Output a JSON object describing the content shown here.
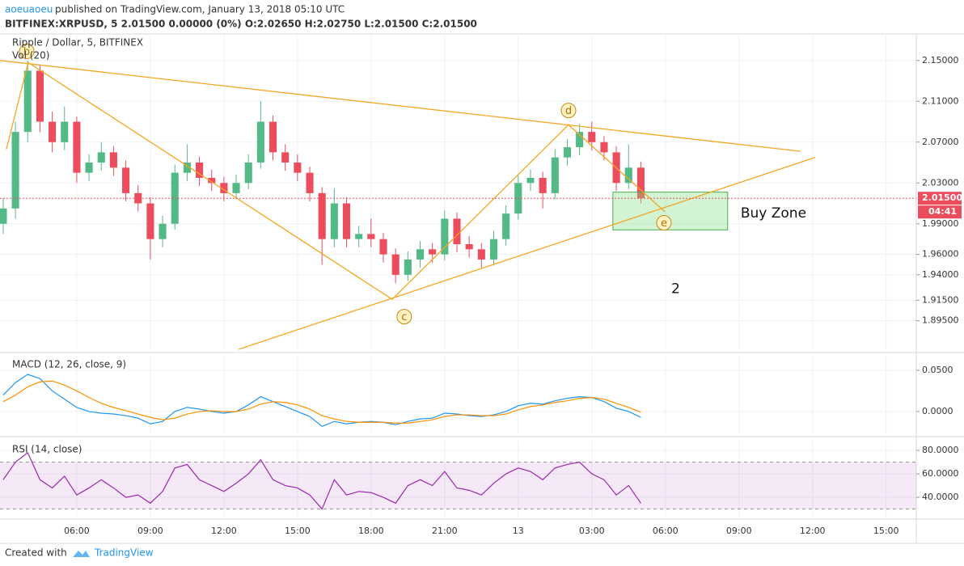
{
  "header": {
    "author": "aoeuaoeu",
    "published": "published on TradingView.com, January 13, 2018 05:10 UTC",
    "symbol_line": "BITFINEX:XRPUSD, 5  2.01500 0.00000 (0%) O:2.02650 H:2.02750 L:2.01500 C:2.01500"
  },
  "chart_data": [
    {
      "type": "candlestick",
      "title": "Ripple / Dollar, 5, BITFINEX",
      "subtitle": "Vol (20)",
      "up_color": "#53b987",
      "down_color": "#eb4d5c",
      "xlim": [
        2.87,
        40.23
      ],
      "xticks": [
        {
          "value": 6,
          "label": "06:00"
        },
        {
          "value": 9,
          "label": "09:00"
        },
        {
          "value": 12,
          "label": "12:00"
        },
        {
          "value": 15,
          "label": "15:00"
        },
        {
          "value": 18,
          "label": "18:00"
        },
        {
          "value": 21,
          "label": "21:00"
        },
        {
          "value": 24,
          "label": "13"
        },
        {
          "value": 27,
          "label": "03:00"
        },
        {
          "value": 30,
          "label": "06:00"
        },
        {
          "value": 33,
          "label": "09:00"
        },
        {
          "value": 36,
          "label": "12:00"
        },
        {
          "value": 39,
          "label": "15:00"
        }
      ],
      "ylim": [
        1.867,
        2.176
      ],
      "yticks": [
        {
          "value": 2.15,
          "label": "2.15000"
        },
        {
          "value": 2.11,
          "label": "2.11000"
        },
        {
          "value": 2.07,
          "label": "2.07000"
        },
        {
          "value": 2.03,
          "label": "2.03000"
        },
        {
          "value": 1.99,
          "label": "1.99000"
        },
        {
          "value": 1.96,
          "label": "1.96000"
        },
        {
          "value": 1.94,
          "label": "1.94000"
        },
        {
          "value": 1.915,
          "label": "1.91500"
        },
        {
          "value": 1.895,
          "label": "1.89500"
        }
      ],
      "grid": true,
      "x": [
        3,
        3.5,
        4,
        4.5,
        5,
        5.5,
        6,
        6.5,
        7,
        7.5,
        8,
        8.5,
        9,
        9.5,
        10,
        10.5,
        11,
        11.5,
        12,
        12.5,
        13,
        13.5,
        14,
        14.5,
        15,
        15.5,
        16,
        16.5,
        17,
        17.5,
        18,
        18.5,
        19,
        19.5,
        20,
        20.5,
        21,
        21.5,
        22,
        22.5,
        23,
        23.5,
        24,
        24.5,
        25,
        25.5,
        26,
        26.5,
        27,
        27.5,
        28,
        28.5,
        29
      ],
      "open": [
        1.99,
        2.005,
        2.08,
        2.14,
        2.09,
        2.07,
        2.09,
        2.04,
        2.05,
        2.06,
        2.045,
        2.02,
        2.01,
        1.975,
        1.99,
        2.04,
        2.05,
        2.035,
        2.03,
        2.02,
        2.03,
        2.05,
        2.09,
        2.06,
        2.05,
        2.04,
        2.02,
        1.975,
        2.01,
        1.975,
        1.98,
        1.975,
        1.96,
        1.94,
        1.955,
        1.965,
        1.96,
        1.995,
        1.97,
        1.965,
        1.955,
        1.975,
        2.0,
        2.03,
        2.035,
        2.02,
        2.055,
        2.065,
        2.08,
        2.07,
        2.06,
        2.03,
        2.045
      ],
      "high": [
        2.015,
        2.09,
        2.15,
        2.145,
        2.1,
        2.105,
        2.095,
        2.058,
        2.07,
        2.066,
        2.052,
        2.028,
        2.016,
        1.998,
        2.048,
        2.068,
        2.056,
        2.043,
        2.036,
        2.038,
        2.058,
        2.11,
        2.096,
        2.068,
        2.058,
        2.046,
        2.026,
        2.025,
        2.016,
        1.988,
        1.995,
        1.981,
        1.966,
        1.963,
        1.973,
        1.971,
        2.003,
        2.001,
        1.978,
        1.971,
        1.983,
        2.008,
        2.038,
        2.043,
        2.041,
        2.063,
        2.073,
        2.088,
        2.09,
        2.076,
        2.066,
        2.068,
        2.051
      ],
      "low": [
        1.98,
        1.995,
        2.07,
        2.08,
        2.06,
        2.062,
        2.03,
        2.032,
        2.042,
        2.037,
        2.012,
        2.002,
        1.955,
        1.967,
        1.984,
        2.032,
        2.027,
        2.022,
        2.012,
        2.014,
        2.024,
        2.044,
        2.052,
        2.042,
        2.032,
        2.012,
        1.95,
        1.967,
        1.967,
        1.967,
        1.967,
        1.952,
        1.932,
        1.934,
        1.947,
        1.952,
        1.954,
        1.962,
        1.957,
        1.947,
        1.949,
        1.969,
        1.994,
        2.022,
        2.005,
        2.014,
        2.047,
        2.057,
        2.062,
        2.052,
        2.022,
        2.024,
        2.01
      ],
      "close": [
        2.005,
        2.08,
        2.14,
        2.09,
        2.07,
        2.09,
        2.04,
        2.05,
        2.06,
        2.045,
        2.02,
        2.01,
        1.975,
        1.99,
        2.04,
        2.05,
        2.035,
        2.03,
        2.02,
        2.03,
        2.05,
        2.09,
        2.06,
        2.05,
        2.04,
        2.02,
        1.975,
        2.01,
        1.975,
        1.98,
        1.975,
        1.96,
        1.94,
        1.955,
        1.965,
        1.96,
        1.995,
        1.97,
        1.965,
        1.955,
        1.975,
        2.0,
        2.03,
        2.035,
        2.02,
        2.055,
        2.065,
        2.08,
        2.07,
        2.06,
        2.03,
        2.045,
        2.015
      ],
      "last_price": {
        "value": 2.015,
        "label": "2.01500",
        "color": "#eb4d5c"
      },
      "countdown": "04:41",
      "trendlines": [
        {
          "x": [
            2.87,
            35.51
          ],
          "y": [
            2.15,
            2.061
          ],
          "color": "#f5a623"
        },
        {
          "x": [
            12.6,
            36.1
          ],
          "y": [
            1.867,
            2.055
          ],
          "color": "#f5a623"
        },
        {
          "x": [
            3.13,
            4.02,
            18.86,
            26.05,
            29.97
          ],
          "y": [
            2.063,
            2.148,
            1.916,
            2.087,
            2.002
          ],
          "color": "#f5a623"
        }
      ],
      "wave_labels": [
        {
          "text": "b",
          "x": 3.96,
          "y": 2.159
        },
        {
          "text": "c",
          "x": 19.35,
          "y": 1.899
        },
        {
          "text": "d",
          "x": 26.05,
          "y": 2.101
        },
        {
          "text": "e",
          "x": 29.94,
          "y": 1.991
        }
      ],
      "zone": {
        "x": [
          27.86,
          32.54
        ],
        "y": [
          1.984,
          2.021
        ],
        "color": "#7ee07e"
      },
      "notes": [
        {
          "text": "Buy Zone",
          "x": 33.07,
          "y": 2.0
        },
        {
          "text": "2",
          "x": 30.24,
          "y": 1.926
        }
      ]
    },
    {
      "type": "line",
      "title": "MACD (12, 26, close, 9)",
      "xlim": [
        2.87,
        40.23
      ],
      "ylim": [
        -0.0265,
        0.0676
      ],
      "yticks": [
        {
          "value": 0.05,
          "label": "0.0500"
        },
        {
          "value": 0,
          "label": "0.0000"
        }
      ],
      "grid": true,
      "x": [
        3,
        3.5,
        4,
        4.5,
        5,
        5.5,
        6,
        6.5,
        7,
        7.5,
        8,
        8.5,
        9,
        9.5,
        10,
        10.5,
        11,
        11.5,
        12,
        12.5,
        13,
        13.5,
        14,
        14.5,
        15,
        15.5,
        16,
        16.5,
        17,
        17.5,
        18,
        18.5,
        19,
        19.5,
        20,
        20.5,
        21,
        21.5,
        22,
        22.5,
        23,
        23.5,
        24,
        24.5,
        25,
        25.5,
        26,
        26.5,
        27,
        27.5,
        28,
        28.5,
        29
      ],
      "series": [
        {
          "color": "#2196f3",
          "values": [
            0.02,
            0.035,
            0.045,
            0.04,
            0.025,
            0.015,
            0.005,
            0,
            -0.002,
            -0.003,
            -0.005,
            -0.008,
            -0.015,
            -0.012,
            0,
            0.005,
            0.003,
            0,
            -0.002,
            0,
            0.008,
            0.018,
            0.012,
            0.006,
            0,
            -0.006,
            -0.018,
            -0.012,
            -0.015,
            -0.013,
            -0.012,
            -0.013,
            -0.016,
            -0.012,
            -0.009,
            -0.008,
            -0.002,
            -0.003,
            -0.005,
            -0.006,
            -0.004,
            0,
            0.007,
            0.01,
            0.009,
            0.013,
            0.016,
            0.018,
            0.017,
            0.012,
            0.004,
            0,
            -0.007
          ]
        },
        {
          "color": "#ff8f00",
          "values": [
            0.012,
            0.02,
            0.03,
            0.036,
            0.037,
            0.032,
            0.025,
            0.017,
            0.01,
            0.005,
            0.001,
            -0.003,
            -0.007,
            -0.01,
            -0.008,
            -0.003,
            0,
            0.001,
            0,
            0,
            0.003,
            0.009,
            0.012,
            0.011,
            0.008,
            0.003,
            -0.005,
            -0.009,
            -0.012,
            -0.013,
            -0.013,
            -0.013,
            -0.014,
            -0.014,
            -0.012,
            -0.01,
            -0.006,
            -0.004,
            -0.004,
            -0.005,
            -0.005,
            -0.003,
            0.002,
            0.006,
            0.008,
            0.011,
            0.013,
            0.016,
            0.017,
            0.015,
            0.01,
            0.005,
            -0.001
          ]
        }
      ]
    },
    {
      "type": "line",
      "title": "RSI (14, close)",
      "xlim": [
        2.87,
        40.23
      ],
      "ylim": [
        22.8,
        88.3
      ],
      "yticks": [
        {
          "value": 80,
          "label": "80.0000"
        },
        {
          "value": 60,
          "label": "60.0000"
        },
        {
          "value": 40,
          "label": "40.0000"
        }
      ],
      "grid": true,
      "band": [
        30,
        70
      ],
      "band_color": "#9c27b0",
      "x": [
        3,
        3.5,
        4,
        4.5,
        5,
        5.5,
        6,
        6.5,
        7,
        7.5,
        8,
        8.5,
        9,
        9.5,
        10,
        10.5,
        11,
        11.5,
        12,
        12.5,
        13,
        13.5,
        14,
        14.5,
        15,
        15.5,
        16,
        16.5,
        17,
        17.5,
        18,
        18.5,
        19,
        19.5,
        20,
        20.5,
        21,
        21.5,
        22,
        22.5,
        23,
        23.5,
        24,
        24.5,
        25,
        25.5,
        26,
        26.5,
        27,
        27.5,
        28,
        28.5,
        29
      ],
      "series": [
        {
          "color": "#9c27b0",
          "values": [
            55,
            70,
            78,
            55,
            48,
            58,
            42,
            48,
            55,
            48,
            40,
            42,
            35,
            45,
            65,
            68,
            55,
            50,
            45,
            52,
            60,
            72,
            55,
            50,
            48,
            42,
            30,
            55,
            42,
            45,
            44,
            40,
            35,
            50,
            55,
            50,
            62,
            48,
            46,
            42,
            52,
            60,
            65,
            62,
            55,
            65,
            68,
            70,
            60,
            55,
            42,
            50,
            35
          ]
        }
      ]
    }
  ],
  "footer": {
    "created": "Created with",
    "brand": "TradingView"
  }
}
